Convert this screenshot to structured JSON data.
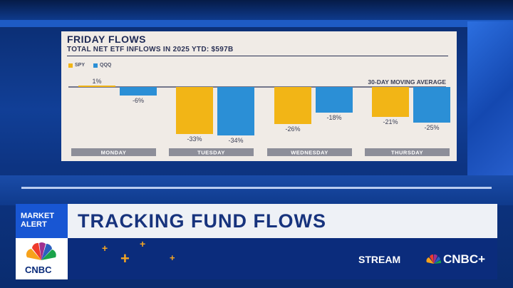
{
  "chart_data": {
    "type": "bar",
    "title": "FRIDAY FLOWS",
    "subtitle": "TOTAL NET ETF INFLOWS IN 2025 YTD: $597B",
    "reference_label": "30-DAY MOVING AVERAGE",
    "categories": [
      "MONDAY",
      "TUESDAY",
      "WEDNESDAY",
      "THURSDAY"
    ],
    "series": [
      {
        "name": "SPY",
        "color": "#f2b516",
        "values": [
          1,
          -33,
          -26,
          -21
        ],
        "labels": [
          "1%",
          "-33%",
          "-26%",
          "-21%"
        ]
      },
      {
        "name": "QQQ",
        "color": "#2b8fd6",
        "values": [
          -6,
          -34,
          -18,
          -25
        ],
        "labels": [
          "-6%",
          "-34%",
          "-18%",
          "-25%"
        ]
      }
    ],
    "ylim": [
      -40,
      5
    ],
    "legend": "top-left"
  },
  "lower_third": {
    "alert": "MARKET ALERT",
    "headline": "TRACKING FUND FLOWS",
    "network": "CNBC",
    "stream_label": "STREAM",
    "stream_brand": "CNBC+"
  }
}
